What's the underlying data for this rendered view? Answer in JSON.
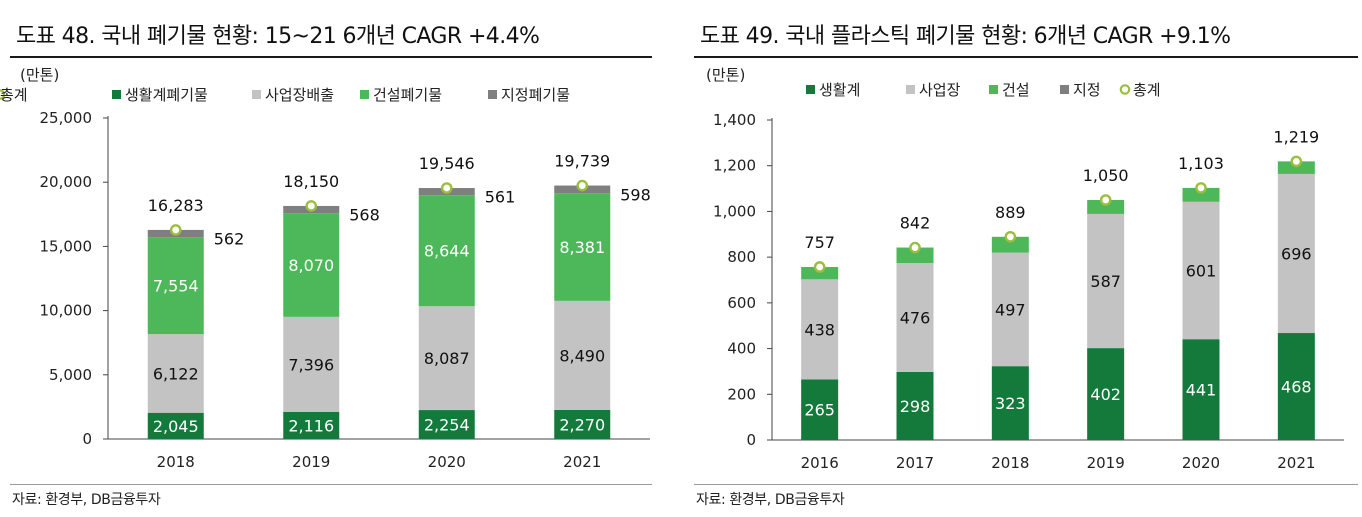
{
  "colors": {
    "household": "#137a3c",
    "business": "#c3c3c3",
    "construction": "#4cb85a",
    "designated": "#7f7f7f",
    "total_marker": "#9bbf3c"
  },
  "chart_data": [
    {
      "type": "bar",
      "stacked": true,
      "title": "도표 48. 국내 폐기물 현황: 15~21 6개년 CAGR +4.4%",
      "unit_label": "(만톤)",
      "source": "자료: 환경부, DB금융투자",
      "categories": [
        "2018",
        "2019",
        "2020",
        "2021"
      ],
      "ylim": [
        0,
        25000
      ],
      "yticks": [
        0,
        5000,
        10000,
        15000,
        20000,
        25000
      ],
      "ytick_labels": [
        "0",
        "5,000",
        "10,000",
        "15,000",
        "20,000",
        "25,000"
      ],
      "legend_position": "top",
      "series": [
        {
          "name": "생활계폐기물",
          "color_key": "household",
          "values": [
            2045,
            2116,
            2254,
            2270
          ],
          "labels": [
            "2,045",
            "2,116",
            "2,254",
            "2,270"
          ],
          "label_style": "white"
        },
        {
          "name": "사업장배출",
          "color_key": "business",
          "values": [
            6122,
            7396,
            8087,
            8490
          ],
          "labels": [
            "6,122",
            "7,396",
            "8,087",
            "8,490"
          ],
          "label_style": "dark"
        },
        {
          "name": "건설폐기물",
          "color_key": "construction",
          "values": [
            7554,
            8070,
            8644,
            8381
          ],
          "labels": [
            "7,554",
            "8,070",
            "8,644",
            "8,381"
          ],
          "label_style": "white"
        },
        {
          "name": "지정폐기물",
          "color_key": "designated",
          "values": [
            562,
            568,
            561,
            598
          ],
          "labels": [
            "562",
            "568",
            "561",
            "598"
          ],
          "label_style": "outside"
        }
      ],
      "total": {
        "name": "총계",
        "values": [
          16283,
          18150,
          19546,
          19739
        ],
        "labels": [
          "16,283",
          "18,150",
          "19,546",
          "19,739"
        ]
      }
    },
    {
      "type": "bar",
      "stacked": true,
      "title": "도표 49. 국내 플라스틱 폐기물 현황: 6개년 CAGR +9.1%",
      "unit_label": "(만톤)",
      "source": "자료: 환경부, DB금융투자",
      "categories": [
        "2016",
        "2017",
        "2018",
        "2019",
        "2020",
        "2021"
      ],
      "ylim": [
        0,
        1400
      ],
      "yticks": [
        0,
        200,
        400,
        600,
        800,
        1000,
        1200,
        1400
      ],
      "ytick_labels": [
        "0",
        "200",
        "400",
        "600",
        "800",
        "1,000",
        "1,200",
        "1,400"
      ],
      "legend_position": "top",
      "series": [
        {
          "name": "생활계",
          "color_key": "household",
          "values": [
            265,
            298,
            323,
            402,
            441,
            468
          ],
          "labels": [
            "265",
            "298",
            "323",
            "402",
            "441",
            "468"
          ],
          "label_style": "white"
        },
        {
          "name": "사업장",
          "color_key": "business",
          "values": [
            438,
            476,
            497,
            587,
            601,
            696
          ],
          "labels": [
            "438",
            "476",
            "497",
            "587",
            "601",
            "696"
          ],
          "label_style": "dark"
        },
        {
          "name": "건설",
          "color_key": "construction",
          "values": [
            54,
            68,
            69,
            61,
            61,
            55
          ],
          "labels": null,
          "label_style": "none"
        },
        {
          "name": "지정",
          "color_key": "designated",
          "values": [
            0,
            0,
            0,
            0,
            0,
            0
          ],
          "labels": null,
          "label_style": "none"
        }
      ],
      "total": {
        "name": "총계",
        "values": [
          757,
          842,
          889,
          1050,
          1103,
          1219
        ],
        "labels": [
          "757",
          "842",
          "889",
          "1,050",
          "1,103",
          "1,219"
        ]
      }
    }
  ]
}
